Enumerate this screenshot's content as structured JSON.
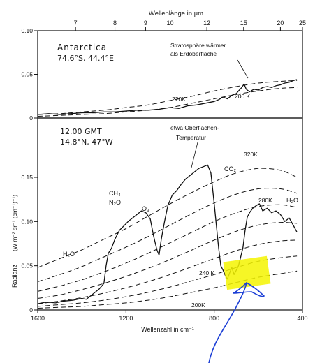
{
  "chart_data": [
    {
      "panel": "top",
      "type": "line",
      "x_axis_top": {
        "title": "Wellenlänge in µm",
        "ticks": [
          7,
          8,
          9,
          10,
          12,
          15,
          20,
          25
        ]
      },
      "ylim": [
        0,
        0.1
      ],
      "yticks": [
        "0.10",
        "0.05",
        "0"
      ],
      "annotations": {
        "site": "Antarctica",
        "coords": "74.6°S, 44.4°E",
        "note_line1": "Stratosphäre wärmer",
        "note_line2": "als Erdoberfläche",
        "label_220": "220K",
        "label_200": "200 K"
      },
      "blackbody_220": [
        [
          1600,
          0.004
        ],
        [
          1500,
          0.005
        ],
        [
          1400,
          0.007
        ],
        [
          1300,
          0.009
        ],
        [
          1200,
          0.012
        ],
        [
          1100,
          0.015
        ],
        [
          1000,
          0.02
        ],
        [
          900,
          0.025
        ],
        [
          800,
          0.031
        ],
        [
          700,
          0.036
        ],
        [
          600,
          0.04
        ],
        [
          500,
          0.042
        ],
        [
          425,
          0.043
        ]
      ],
      "blackbody_200": [
        [
          1600,
          0.002
        ],
        [
          1500,
          0.003
        ],
        [
          1400,
          0.004
        ],
        [
          1300,
          0.005
        ],
        [
          1200,
          0.007
        ],
        [
          1100,
          0.009
        ],
        [
          1000,
          0.012
        ],
        [
          900,
          0.017
        ],
        [
          800,
          0.022
        ],
        [
          700,
          0.027
        ],
        [
          600,
          0.031
        ],
        [
          500,
          0.034
        ],
        [
          425,
          0.035
        ]
      ],
      "spectrum": [
        [
          1600,
          0.004
        ],
        [
          1550,
          0.005
        ],
        [
          1500,
          0.004
        ],
        [
          1450,
          0.005
        ],
        [
          1400,
          0.006
        ],
        [
          1350,
          0.006
        ],
        [
          1300,
          0.007
        ],
        [
          1250,
          0.007
        ],
        [
          1200,
          0.008
        ],
        [
          1150,
          0.009
        ],
        [
          1100,
          0.009
        ],
        [
          1050,
          0.01
        ],
        [
          1000,
          0.012
        ],
        [
          960,
          0.011
        ],
        [
          920,
          0.014
        ],
        [
          880,
          0.015
        ],
        [
          840,
          0.017
        ],
        [
          800,
          0.019
        ],
        [
          780,
          0.021
        ],
        [
          760,
          0.024
        ],
        [
          740,
          0.022
        ],
        [
          720,
          0.026
        ],
        [
          700,
          0.028
        ],
        [
          690,
          0.031
        ],
        [
          675,
          0.035
        ],
        [
          665,
          0.039
        ],
        [
          655,
          0.033
        ],
        [
          640,
          0.03
        ],
        [
          620,
          0.033
        ],
        [
          600,
          0.032
        ],
        [
          580,
          0.035
        ],
        [
          560,
          0.036
        ],
        [
          540,
          0.035
        ],
        [
          520,
          0.037
        ],
        [
          500,
          0.038
        ],
        [
          480,
          0.04
        ],
        [
          460,
          0.041
        ],
        [
          440,
          0.043
        ],
        [
          425,
          0.044
        ]
      ]
    },
    {
      "panel": "bottom",
      "type": "line",
      "x_axis_bottom": {
        "title": "Wellenzahl in cm⁻¹",
        "ticks": [
          1600,
          1200,
          800,
          400
        ],
        "xlim": [
          1600,
          400
        ]
      },
      "y_axis": {
        "title_left": "Radianz",
        "title_units": "(W m⁻² sr⁻¹ (cm⁻¹)⁻¹)",
        "ticks": [
          "0.15",
          "0.10",
          "0.05",
          "0"
        ],
        "ylim": [
          0,
          0.17
        ]
      },
      "annotations": {
        "time": "12.00 GMT",
        "coords": "14.8°N, 47°W",
        "surface_line1": "etwa Oberflächen-",
        "surface_line2": "Temperatur",
        "co2": "CO₂",
        "ch4": "CH₄",
        "n2o": "N₂O",
        "o3": "O₃",
        "h2o_left": "H₂O",
        "h2o_right": "H₂O",
        "k320": "320K",
        "k280": "280K",
        "k240": "240 K",
        "k200": "200K"
      },
      "blackbody_curves": [
        {
          "T": 320,
          "points": [
            [
              1600,
              0.048
            ],
            [
              1500,
              0.058
            ],
            [
              1400,
              0.068
            ],
            [
              1300,
              0.08
            ],
            [
              1200,
              0.092
            ],
            [
              1100,
              0.106
            ],
            [
              1000,
              0.12
            ],
            [
              900,
              0.133
            ],
            [
              800,
              0.145
            ],
            [
              700,
              0.155
            ],
            [
              600,
              0.16
            ],
            [
              500,
              0.158
            ],
            [
              425,
              0.15
            ]
          ]
        },
        {
          "T": 300,
          "points": [
            [
              1600,
              0.032
            ],
            [
              1500,
              0.04
            ],
            [
              1400,
              0.049
            ],
            [
              1300,
              0.06
            ],
            [
              1200,
              0.071
            ],
            [
              1100,
              0.083
            ],
            [
              1000,
              0.096
            ],
            [
              900,
              0.109
            ],
            [
              800,
              0.121
            ],
            [
              700,
              0.131
            ],
            [
              600,
              0.137
            ],
            [
              500,
              0.137
            ],
            [
              425,
              0.132
            ]
          ]
        },
        {
          "T": 280,
          "points": [
            [
              1600,
              0.021
            ],
            [
              1500,
              0.027
            ],
            [
              1400,
              0.034
            ],
            [
              1300,
              0.043
            ],
            [
              1200,
              0.053
            ],
            [
              1100,
              0.064
            ],
            [
              1000,
              0.076
            ],
            [
              900,
              0.088
            ],
            [
              800,
              0.1
            ],
            [
              700,
              0.11
            ],
            [
              600,
              0.117
            ],
            [
              500,
              0.119
            ],
            [
              425,
              0.116
            ]
          ]
        },
        {
          "T": 260,
          "points": [
            [
              1600,
              0.013
            ],
            [
              1500,
              0.017
            ],
            [
              1400,
              0.023
            ],
            [
              1300,
              0.03
            ],
            [
              1200,
              0.038
            ],
            [
              1100,
              0.047
            ],
            [
              1000,
              0.057
            ],
            [
              900,
              0.068
            ],
            [
              800,
              0.079
            ],
            [
              700,
              0.089
            ],
            [
              600,
              0.096
            ],
            [
              500,
              0.099
            ],
            [
              425,
              0.098
            ]
          ]
        },
        {
          "T": 240,
          "points": [
            [
              1600,
              0.007
            ],
            [
              1500,
              0.01
            ],
            [
              1400,
              0.014
            ],
            [
              1300,
              0.019
            ],
            [
              1200,
              0.025
            ],
            [
              1100,
              0.032
            ],
            [
              1000,
              0.04
            ],
            [
              900,
              0.049
            ],
            [
              800,
              0.058
            ],
            [
              700,
              0.067
            ],
            [
              600,
              0.074
            ],
            [
              500,
              0.078
            ],
            [
              425,
              0.079
            ]
          ]
        },
        {
          "T": 220,
          "points": [
            [
              1600,
              0.004
            ],
            [
              1500,
              0.006
            ],
            [
              1400,
              0.008
            ],
            [
              1300,
              0.011
            ],
            [
              1200,
              0.015
            ],
            [
              1100,
              0.02
            ],
            [
              1000,
              0.026
            ],
            [
              900,
              0.033
            ],
            [
              800,
              0.04
            ],
            [
              700,
              0.048
            ],
            [
              600,
              0.055
            ],
            [
              500,
              0.059
            ],
            [
              425,
              0.061
            ]
          ]
        },
        {
          "T": 200,
          "points": [
            [
              1600,
              0.002
            ],
            [
              1500,
              0.003
            ],
            [
              1400,
              0.004
            ],
            [
              1300,
              0.006
            ],
            [
              1200,
              0.008
            ],
            [
              1100,
              0.011
            ],
            [
              1000,
              0.015
            ],
            [
              900,
              0.02
            ],
            [
              800,
              0.025
            ],
            [
              700,
              0.031
            ],
            [
              600,
              0.037
            ],
            [
              500,
              0.041
            ],
            [
              425,
              0.044
            ]
          ]
        }
      ],
      "spectrum": [
        [
          1600,
          0.007
        ],
        [
          1560,
          0.009
        ],
        [
          1520,
          0.008
        ],
        [
          1480,
          0.01
        ],
        [
          1440,
          0.011
        ],
        [
          1400,
          0.013
        ],
        [
          1380,
          0.012
        ],
        [
          1360,
          0.016
        ],
        [
          1340,
          0.02
        ],
        [
          1320,
          0.024
        ],
        [
          1300,
          0.03
        ],
        [
          1290,
          0.05
        ],
        [
          1280,
          0.064
        ],
        [
          1265,
          0.07
        ],
        [
          1250,
          0.08
        ],
        [
          1230,
          0.09
        ],
        [
          1210,
          0.095
        ],
        [
          1190,
          0.1
        ],
        [
          1170,
          0.104
        ],
        [
          1150,
          0.108
        ],
        [
          1130,
          0.112
        ],
        [
          1110,
          0.11
        ],
        [
          1090,
          0.103
        ],
        [
          1075,
          0.084
        ],
        [
          1060,
          0.068
        ],
        [
          1050,
          0.062
        ],
        [
          1040,
          0.08
        ],
        [
          1025,
          0.1
        ],
        [
          1010,
          0.118
        ],
        [
          990,
          0.13
        ],
        [
          970,
          0.135
        ],
        [
          950,
          0.142
        ],
        [
          930,
          0.148
        ],
        [
          910,
          0.152
        ],
        [
          890,
          0.156
        ],
        [
          870,
          0.16
        ],
        [
          850,
          0.162
        ],
        [
          830,
          0.164
        ],
        [
          815,
          0.155
        ],
        [
          800,
          0.12
        ],
        [
          790,
          0.095
        ],
        [
          780,
          0.07
        ],
        [
          770,
          0.05
        ],
        [
          760,
          0.045
        ],
        [
          748,
          0.038
        ],
        [
          740,
          0.035
        ],
        [
          730,
          0.042
        ],
        [
          720,
          0.048
        ],
        [
          710,
          0.04
        ],
        [
          700,
          0.045
        ],
        [
          690,
          0.05
        ],
        [
          680,
          0.06
        ],
        [
          670,
          0.07
        ],
        [
          660,
          0.09
        ],
        [
          650,
          0.105
        ],
        [
          640,
          0.11
        ],
        [
          625,
          0.115
        ],
        [
          610,
          0.118
        ],
        [
          595,
          0.12
        ],
        [
          580,
          0.112
        ],
        [
          560,
          0.115
        ],
        [
          540,
          0.11
        ],
        [
          520,
          0.112
        ],
        [
          500,
          0.108
        ],
        [
          480,
          0.1
        ],
        [
          460,
          0.104
        ],
        [
          440,
          0.095
        ],
        [
          425,
          0.088
        ]
      ]
    }
  ]
}
